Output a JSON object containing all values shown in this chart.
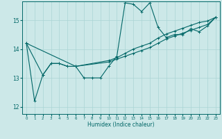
{
  "xlabel": "Humidex (Indice chaleur)",
  "bg_color": "#cce8e8",
  "line_color": "#006666",
  "grid_color": "#aad4d4",
  "xlim": [
    -0.5,
    23.5
  ],
  "ylim": [
    11.75,
    15.65
  ],
  "yticks": [
    12,
    13,
    14,
    15
  ],
  "xticks": [
    0,
    1,
    2,
    3,
    4,
    5,
    6,
    7,
    8,
    9,
    10,
    11,
    12,
    13,
    14,
    15,
    16,
    17,
    18,
    19,
    20,
    21,
    22,
    23
  ],
  "series1_x": [
    0,
    1,
    2,
    3,
    4,
    5,
    6,
    7,
    8,
    9,
    10,
    11,
    12,
    13,
    14,
    15,
    16,
    17,
    18,
    19,
    20,
    21,
    22,
    23
  ],
  "series1_y": [
    14.2,
    12.2,
    13.1,
    13.5,
    13.5,
    13.4,
    13.4,
    13.0,
    13.0,
    13.0,
    13.4,
    13.75,
    15.6,
    15.55,
    15.3,
    15.6,
    14.75,
    14.4,
    14.5,
    14.5,
    14.7,
    14.6,
    14.8,
    15.1
  ],
  "series2_x": [
    0,
    2,
    3,
    4,
    5,
    6,
    10,
    11,
    12,
    13,
    14,
    15,
    16,
    17,
    18,
    19,
    20,
    21,
    22,
    23
  ],
  "series2_y": [
    14.2,
    13.1,
    13.5,
    13.5,
    13.4,
    13.4,
    13.55,
    13.65,
    13.75,
    13.85,
    13.95,
    14.05,
    14.2,
    14.35,
    14.45,
    14.55,
    14.65,
    14.75,
    14.85,
    15.1
  ],
  "series3_x": [
    0,
    6,
    10,
    11,
    12,
    13,
    14,
    15,
    16,
    17,
    18,
    19,
    20,
    21,
    22,
    23
  ],
  "series3_y": [
    14.2,
    13.4,
    13.6,
    13.7,
    13.85,
    14.0,
    14.1,
    14.2,
    14.38,
    14.52,
    14.62,
    14.72,
    14.82,
    14.92,
    14.97,
    15.1
  ]
}
